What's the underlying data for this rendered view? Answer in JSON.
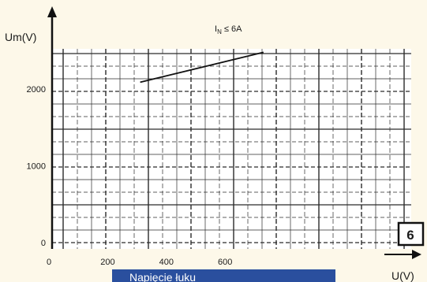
{
  "chart_data": {
    "type": "line",
    "ylabel": "Um(V)",
    "xlabel": "U(V)",
    "annotation": "I_N ≤ 6A",
    "annotation_main": "I",
    "annotation_sub": "N",
    "annotation_rest": " ≤ 6A",
    "x_ticks": [
      "0",
      "200",
      "400",
      "600"
    ],
    "y_ticks": [
      "0",
      "1000",
      "2000"
    ],
    "xlim": [
      0,
      1100
    ],
    "ylim": [
      0,
      2600
    ],
    "grid": true,
    "series": [
      {
        "x": [
          300,
          720
        ],
        "y": [
          2170,
          2560
        ]
      }
    ],
    "badge": "6"
  },
  "caption": {
    "text": "Napięcie łuku"
  },
  "colors": {
    "background": "#fdf8e9",
    "plot_background": "#ffffff",
    "grid": "#2b2b2b",
    "line": "#111111",
    "caption_background": "#2a4f9e",
    "caption_text": "#ffffff"
  }
}
